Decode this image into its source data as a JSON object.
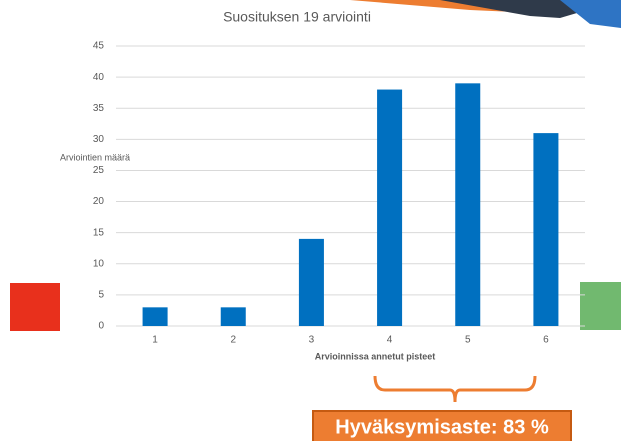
{
  "chart_data": {
    "type": "bar",
    "title": "Suosituksen 19 arviointi",
    "y_label": "Arviointien määrä",
    "x_label": "Arvioinnissa annetut pisteet",
    "categories": [
      "1",
      "2",
      "3",
      "4",
      "5",
      "6"
    ],
    "values": [
      3,
      3,
      14,
      38,
      39,
      31
    ],
    "color": "#0070c0",
    "ylim": [
      0,
      45
    ],
    "yticks": [
      0,
      5,
      10,
      15,
      20,
      25,
      30,
      35,
      40,
      45
    ],
    "grid": true,
    "annotation": "Hyväksymisaste: 83 %"
  }
}
